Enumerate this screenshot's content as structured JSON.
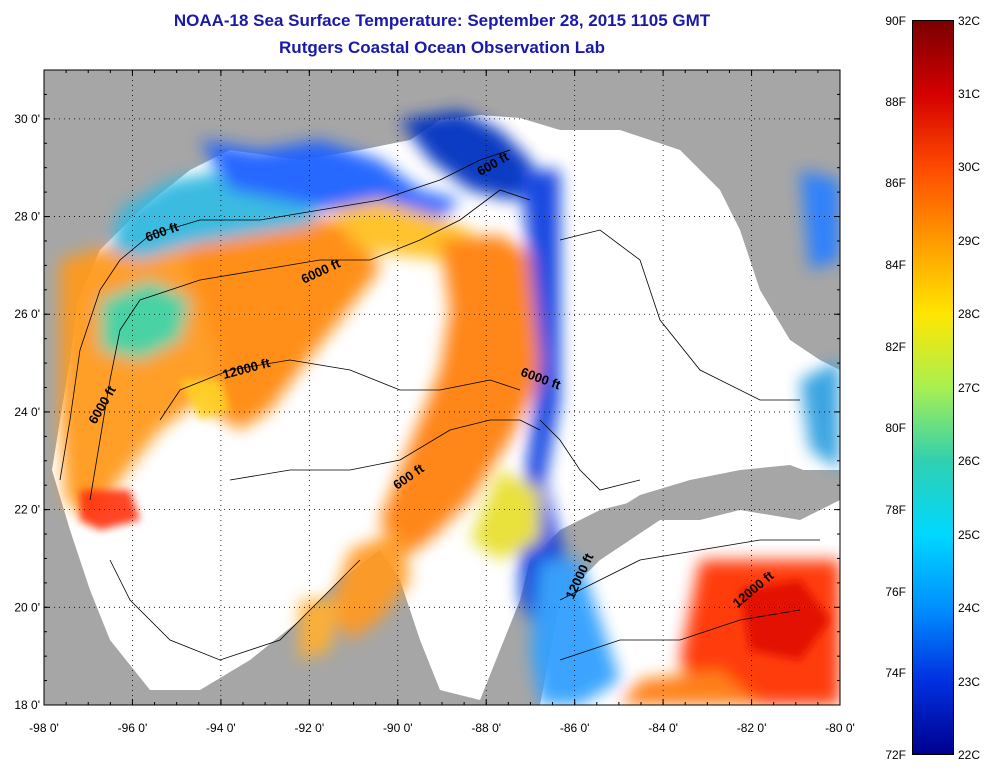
{
  "header": {
    "title": "NOAA-18 Sea Surface Temperature:  September 28, 2015 1105 GMT",
    "subtitle": "Rutgers Coastal Ocean Observation Lab"
  },
  "map": {
    "lon_range": [
      -98,
      -80
    ],
    "lat_range": [
      18,
      31
    ],
    "lon_ticks": [
      -98,
      -96,
      -94,
      -92,
      -90,
      -88,
      -86,
      -84,
      -82,
      -80
    ],
    "lat_ticks": [
      18,
      20,
      22,
      24,
      26,
      28,
      30
    ],
    "lon_tick_labels": [
      "-98 0'",
      "-96 0'",
      "-94 0'",
      "-92 0'",
      "-90 0'",
      "-88 0'",
      "-86 0'",
      "-84 0'",
      "-82 0'",
      "-80 0'"
    ],
    "lat_tick_labels": [
      "18 0'",
      "20 0'",
      "22 0'",
      "24 0'",
      "26 0'",
      "28 0'",
      "30 0'"
    ],
    "grid": "dotted",
    "land_color": "#a6a6a6",
    "no_data_color": "#ffffff",
    "contour_labels": [
      {
        "text": "600 ft",
        "lon": -87.8,
        "lat": 29.0,
        "angle": -30
      },
      {
        "text": "600 ft",
        "lon": -95.3,
        "lat": 27.6,
        "angle": -20
      },
      {
        "text": "6000 ft",
        "lon": -91.7,
        "lat": 26.8,
        "angle": -25
      },
      {
        "text": "12000 ft",
        "lon": -93.4,
        "lat": 24.8,
        "angle": -15
      },
      {
        "text": "6000 ft",
        "lon": -96.6,
        "lat": 24.1,
        "angle": -60
      },
      {
        "text": "6000 ft",
        "lon": -86.8,
        "lat": 24.6,
        "angle": 20
      },
      {
        "text": "600 ft",
        "lon": -89.7,
        "lat": 22.6,
        "angle": -35
      },
      {
        "text": "12000 ft",
        "lon": -85.8,
        "lat": 20.6,
        "angle": -65
      },
      {
        "text": "12000 ft",
        "lon": -81.9,
        "lat": 20.3,
        "angle": -40
      }
    ]
  },
  "colorbar": {
    "stops": [
      "#7a0000",
      "#d40000",
      "#ff4a00",
      "#ff9a00",
      "#ffe600",
      "#a8f050",
      "#30d0b0",
      "#00d8ff",
      "#0090ff",
      "#0030e0",
      "#00008f"
    ],
    "fahrenheit_labels": [
      "90F",
      "88F",
      "86F",
      "84F",
      "82F",
      "80F",
      "78F",
      "76F",
      "74F",
      "72F"
    ],
    "celsius_labels": [
      "32C",
      "31C",
      "30C",
      "29C",
      "28C",
      "27C",
      "26C",
      "25C",
      "24C",
      "23C",
      "22C"
    ],
    "f_range": [
      72,
      90
    ],
    "c_range": [
      22,
      32
    ]
  }
}
